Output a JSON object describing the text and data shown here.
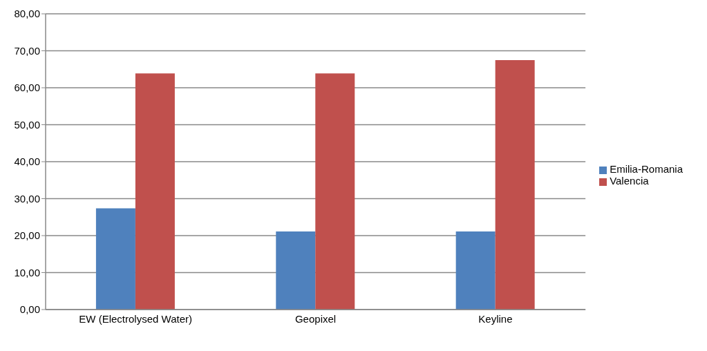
{
  "chart_data": {
    "type": "bar",
    "categories": [
      "EW (Electrolysed Water)",
      "Geopixel",
      "Keyline"
    ],
    "series": [
      {
        "name": "Emilia-Romania",
        "color": "#4f81bd",
        "values": [
          27.4,
          21.1,
          21.1
        ]
      },
      {
        "name": "Valencia",
        "color": "#c0504d",
        "values": [
          63.9,
          63.9,
          67.5
        ]
      }
    ],
    "ylim": [
      0,
      80
    ],
    "yticks": [
      {
        "value": 0,
        "label": "0,00"
      },
      {
        "value": 10,
        "label": "10,00"
      },
      {
        "value": 20,
        "label": "20,00"
      },
      {
        "value": 30,
        "label": "30,00"
      },
      {
        "value": 40,
        "label": "40,00"
      },
      {
        "value": 50,
        "label": "50,00"
      },
      {
        "value": 60,
        "label": "60,00"
      },
      {
        "value": 70,
        "label": "70,00"
      },
      {
        "value": 80,
        "label": "80,00"
      }
    ],
    "grid": "y",
    "legend": "right"
  }
}
